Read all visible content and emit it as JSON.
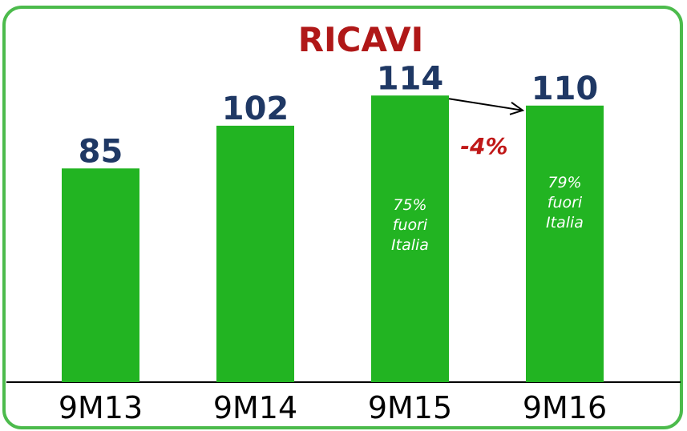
{
  "chart_data": {
    "type": "bar",
    "title": "RICAVI",
    "categories": [
      "9M13",
      "9M14",
      "9M15",
      "9M16"
    ],
    "values": [
      85,
      102,
      114,
      110
    ],
    "color": "#22b422",
    "ylim": [
      0,
      152
    ],
    "bar_notes": [
      null,
      null,
      [
        "75%",
        "fuori",
        "Italia"
      ],
      [
        "79%",
        "fuori",
        "Italia"
      ]
    ],
    "annotations": [
      {
        "text": "-4%"
      }
    ]
  }
}
